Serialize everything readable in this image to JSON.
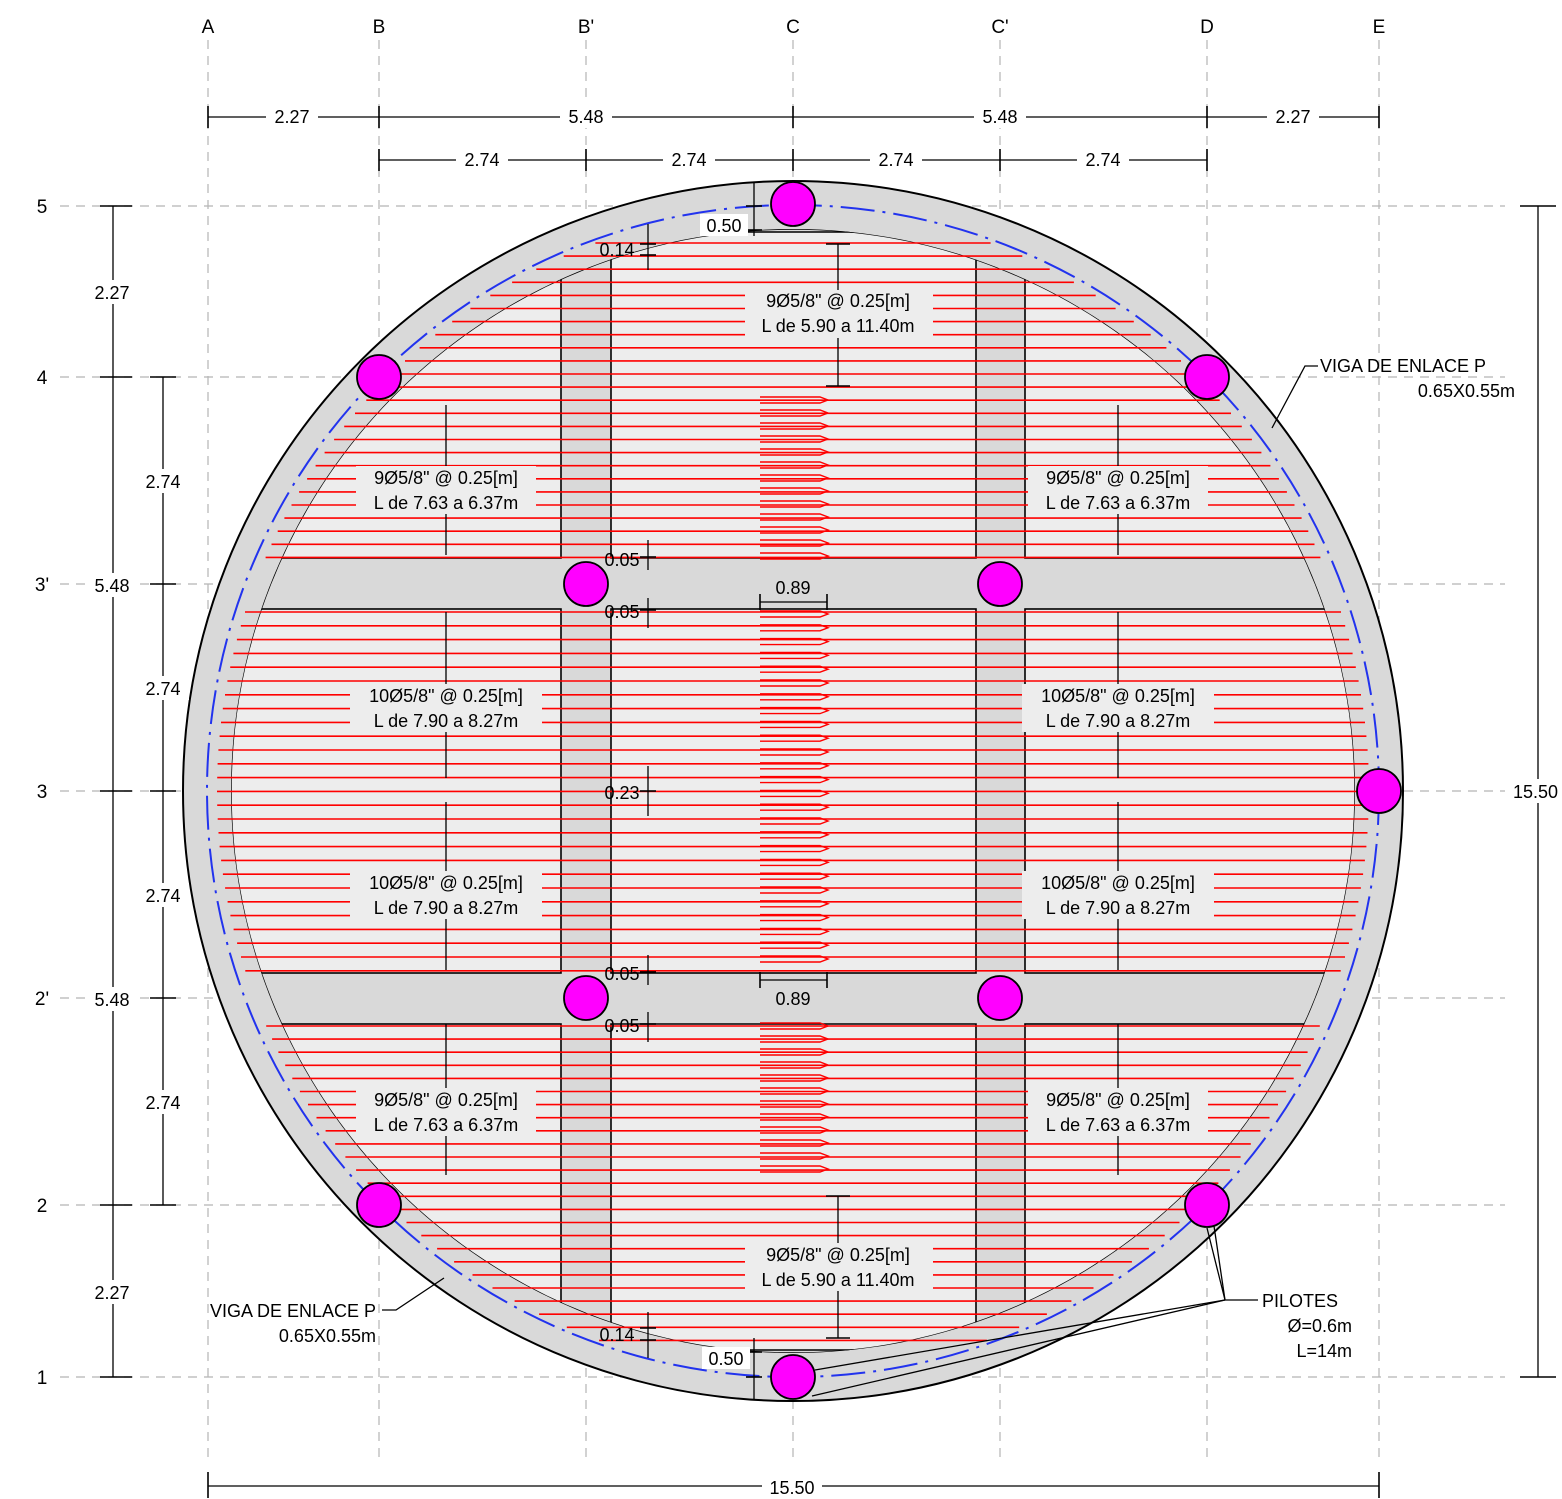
{
  "grid": {
    "columns": [
      "A",
      "B",
      "B'",
      "C",
      "C'",
      "D",
      "E"
    ],
    "rows": [
      "5",
      "4",
      "3'",
      "3",
      "2'",
      "2",
      "1"
    ]
  },
  "dimensions": {
    "top_major": [
      "2.27",
      "5.48",
      "5.48",
      "2.27"
    ],
    "top_minor": [
      "2.74",
      "2.74",
      "2.74",
      "2.74"
    ],
    "left_major": [
      "2.27",
      "5.48",
      "5.48",
      "2.27"
    ],
    "left_minor": [
      "2.74",
      "2.74",
      "2.74",
      "2.74"
    ],
    "overall_bottom": "15.50",
    "overall_right": "15.50",
    "slab_edge_top": "0.50",
    "slab_edge_bottom": "0.50",
    "cover_top": "0.14",
    "cover_bottom": "0.14",
    "gap_3p_upper": "0.05",
    "gap_3p_lower": "0.05",
    "gap_2p_upper": "0.05",
    "gap_2p_lower": "0.05",
    "gap_center": "0.23",
    "splice_upper": "0.89",
    "splice_lower": "0.89"
  },
  "rebar_labels": {
    "top_center": {
      "l1": "9Ø5/8\" @ 0.25[m]",
      "l2": "L de 5.90 a 11.40m"
    },
    "bottom_center": {
      "l1": "9Ø5/8\" @ 0.25[m]",
      "l2": "L de 5.90 a 11.40m"
    },
    "upper_left": {
      "l1": "9Ø5/8\" @ 0.25[m]",
      "l2": "L de 7.63 a 6.37m"
    },
    "upper_right": {
      "l1": "9Ø5/8\" @ 0.25[m]",
      "l2": "L de 7.63 a 6.37m"
    },
    "lower_left": {
      "l1": "9Ø5/8\" @ 0.25[m]",
      "l2": "L de 7.63 a 6.37m"
    },
    "lower_right": {
      "l1": "9Ø5/8\" @ 0.25[m]",
      "l2": "L de 7.63 a 6.37m"
    },
    "mid_upper_left": {
      "l1": "10Ø5/8\" @ 0.25[m]",
      "l2": "L de 7.90 a 8.27m"
    },
    "mid_upper_right": {
      "l1": "10Ø5/8\" @ 0.25[m]",
      "l2": "L de 7.90 a 8.27m"
    },
    "mid_lower_left": {
      "l1": "10Ø5/8\" @ 0.25[m]",
      "l2": "L de 7.90 a 8.27m"
    },
    "mid_lower_right": {
      "l1": "10Ø5/8\" @ 0.25[m]",
      "l2": "L de 7.90 a 8.27m"
    }
  },
  "callouts": {
    "beam_right": {
      "l1": "VIGA DE ENLACE P",
      "l2": "0.65X0.55m"
    },
    "beam_left": {
      "l1": "VIGA DE ENLACE P",
      "l2": "0.65X0.55m"
    },
    "piles": {
      "l1": "PILOTES",
      "l2": "Ø=0.6m",
      "l3": "L=14m"
    }
  },
  "colors": {
    "rebar": "#ff0000",
    "pile": "#ff00ff",
    "beam_ring": "#2233ee",
    "slab": "#d9d9d9",
    "panel": "#ededed",
    "grid": "#b5b5b5"
  }
}
